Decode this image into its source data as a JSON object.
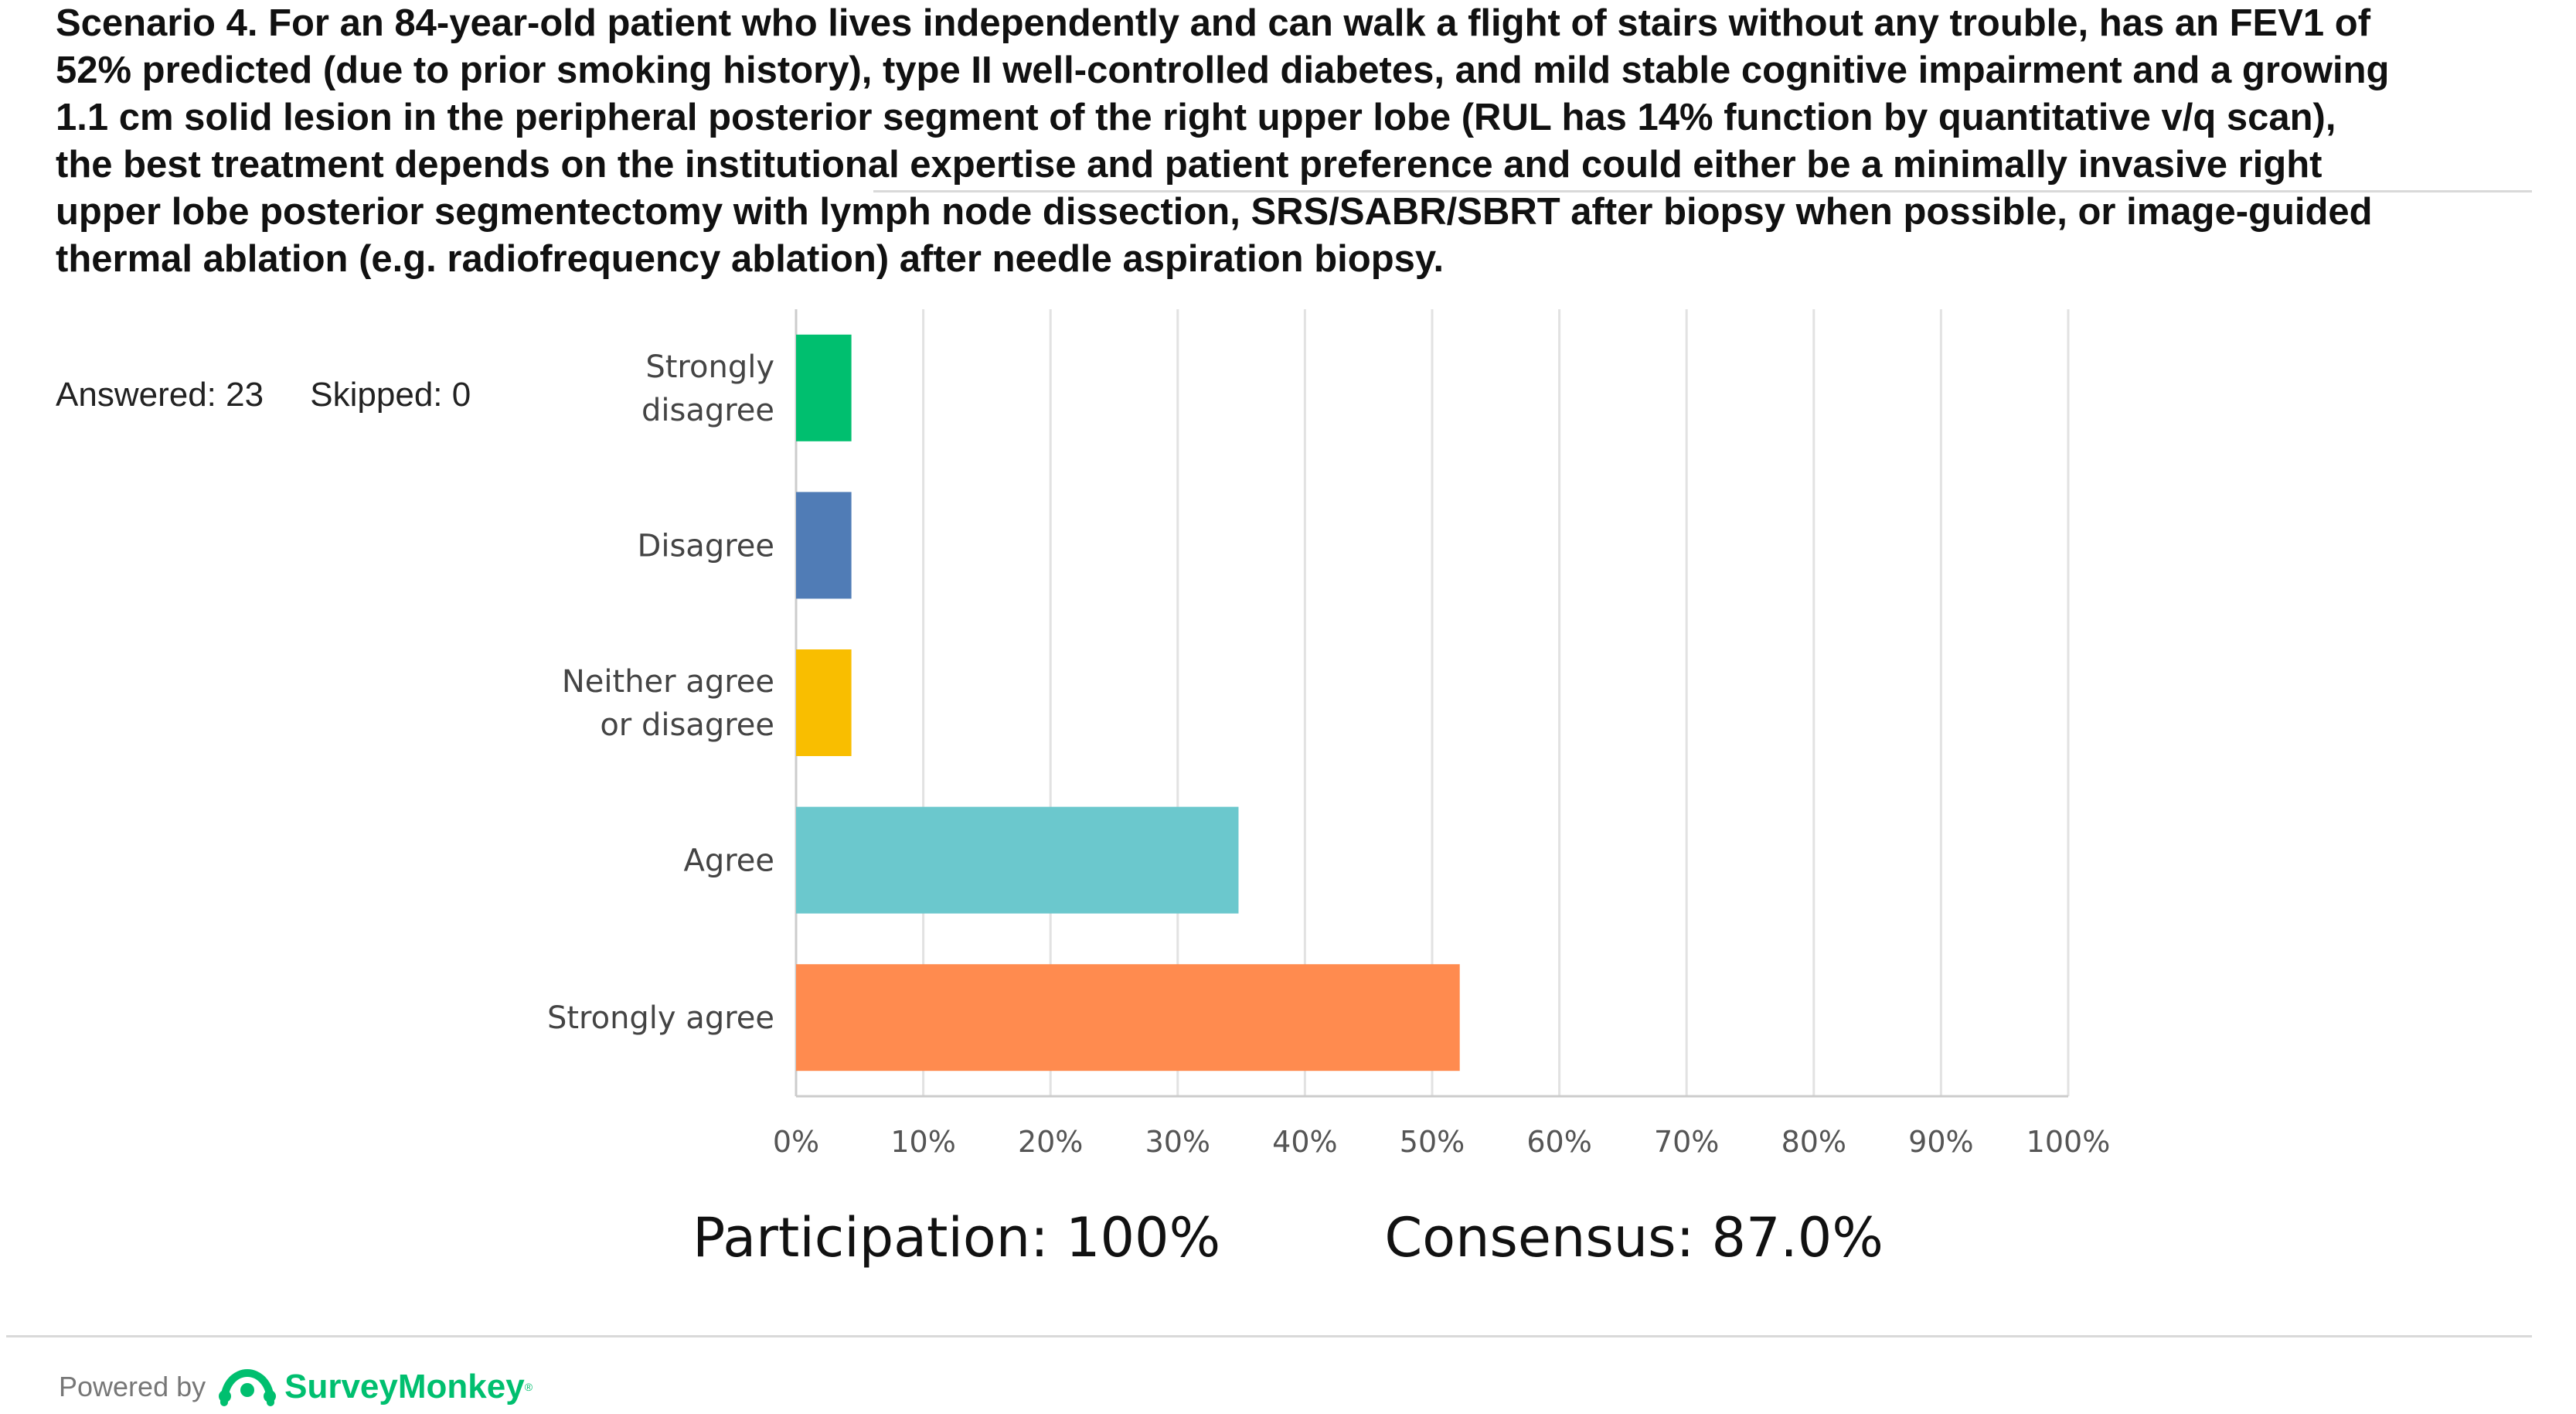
{
  "header": {
    "title": "Scenario 4. For an 84-year-old patient who lives independently and can walk a flight of stairs without any trouble, has an FEV1 of 52% predicted (due to prior smoking history), type II well-controlled diabetes, and mild stable cognitive impairment and a growing 1.1 cm solid lesion in the peripheral posterior segment of the right upper lobe (RUL has 14% function by quantitative v/q scan), the best treatment depends on the institutional expertise and patient preference and could either be a minimally invasive right upper lobe posterior segmentectomy with lymph node dissection, SRS/SABR/SBRT after biopsy when possible, or image-guided thermal ablation (e.g. radiofrequency ablation) after needle aspiration biopsy."
  },
  "stats": {
    "answered": "Answered: 23",
    "skipped": "Skipped: 0"
  },
  "chart_data": {
    "type": "bar",
    "orientation": "horizontal",
    "categories": [
      [
        "Strongly",
        "disagree"
      ],
      [
        "Disagree"
      ],
      [
        "Neither agree",
        "or disagree"
      ],
      [
        "Agree"
      ],
      [
        "Strongly agree"
      ]
    ],
    "values": [
      4.35,
      4.35,
      4.35,
      34.78,
      52.17
    ],
    "colors": [
      "#00bf6f",
      "#507cb6",
      "#f9be00",
      "#6bc8cd",
      "#ff8b4f"
    ],
    "xticks": [
      "0%",
      "10%",
      "20%",
      "30%",
      "40%",
      "50%",
      "60%",
      "70%",
      "80%",
      "90%",
      "100%"
    ],
    "xlim": [
      0,
      100
    ],
    "grid": true
  },
  "summary": {
    "participation": "Participation: 100%",
    "consensus": "Consensus: 87.0%"
  },
  "footer": {
    "powered_by": "Powered by",
    "brand": "SurveyMonkey",
    "brand_color": "#00bf6f"
  }
}
